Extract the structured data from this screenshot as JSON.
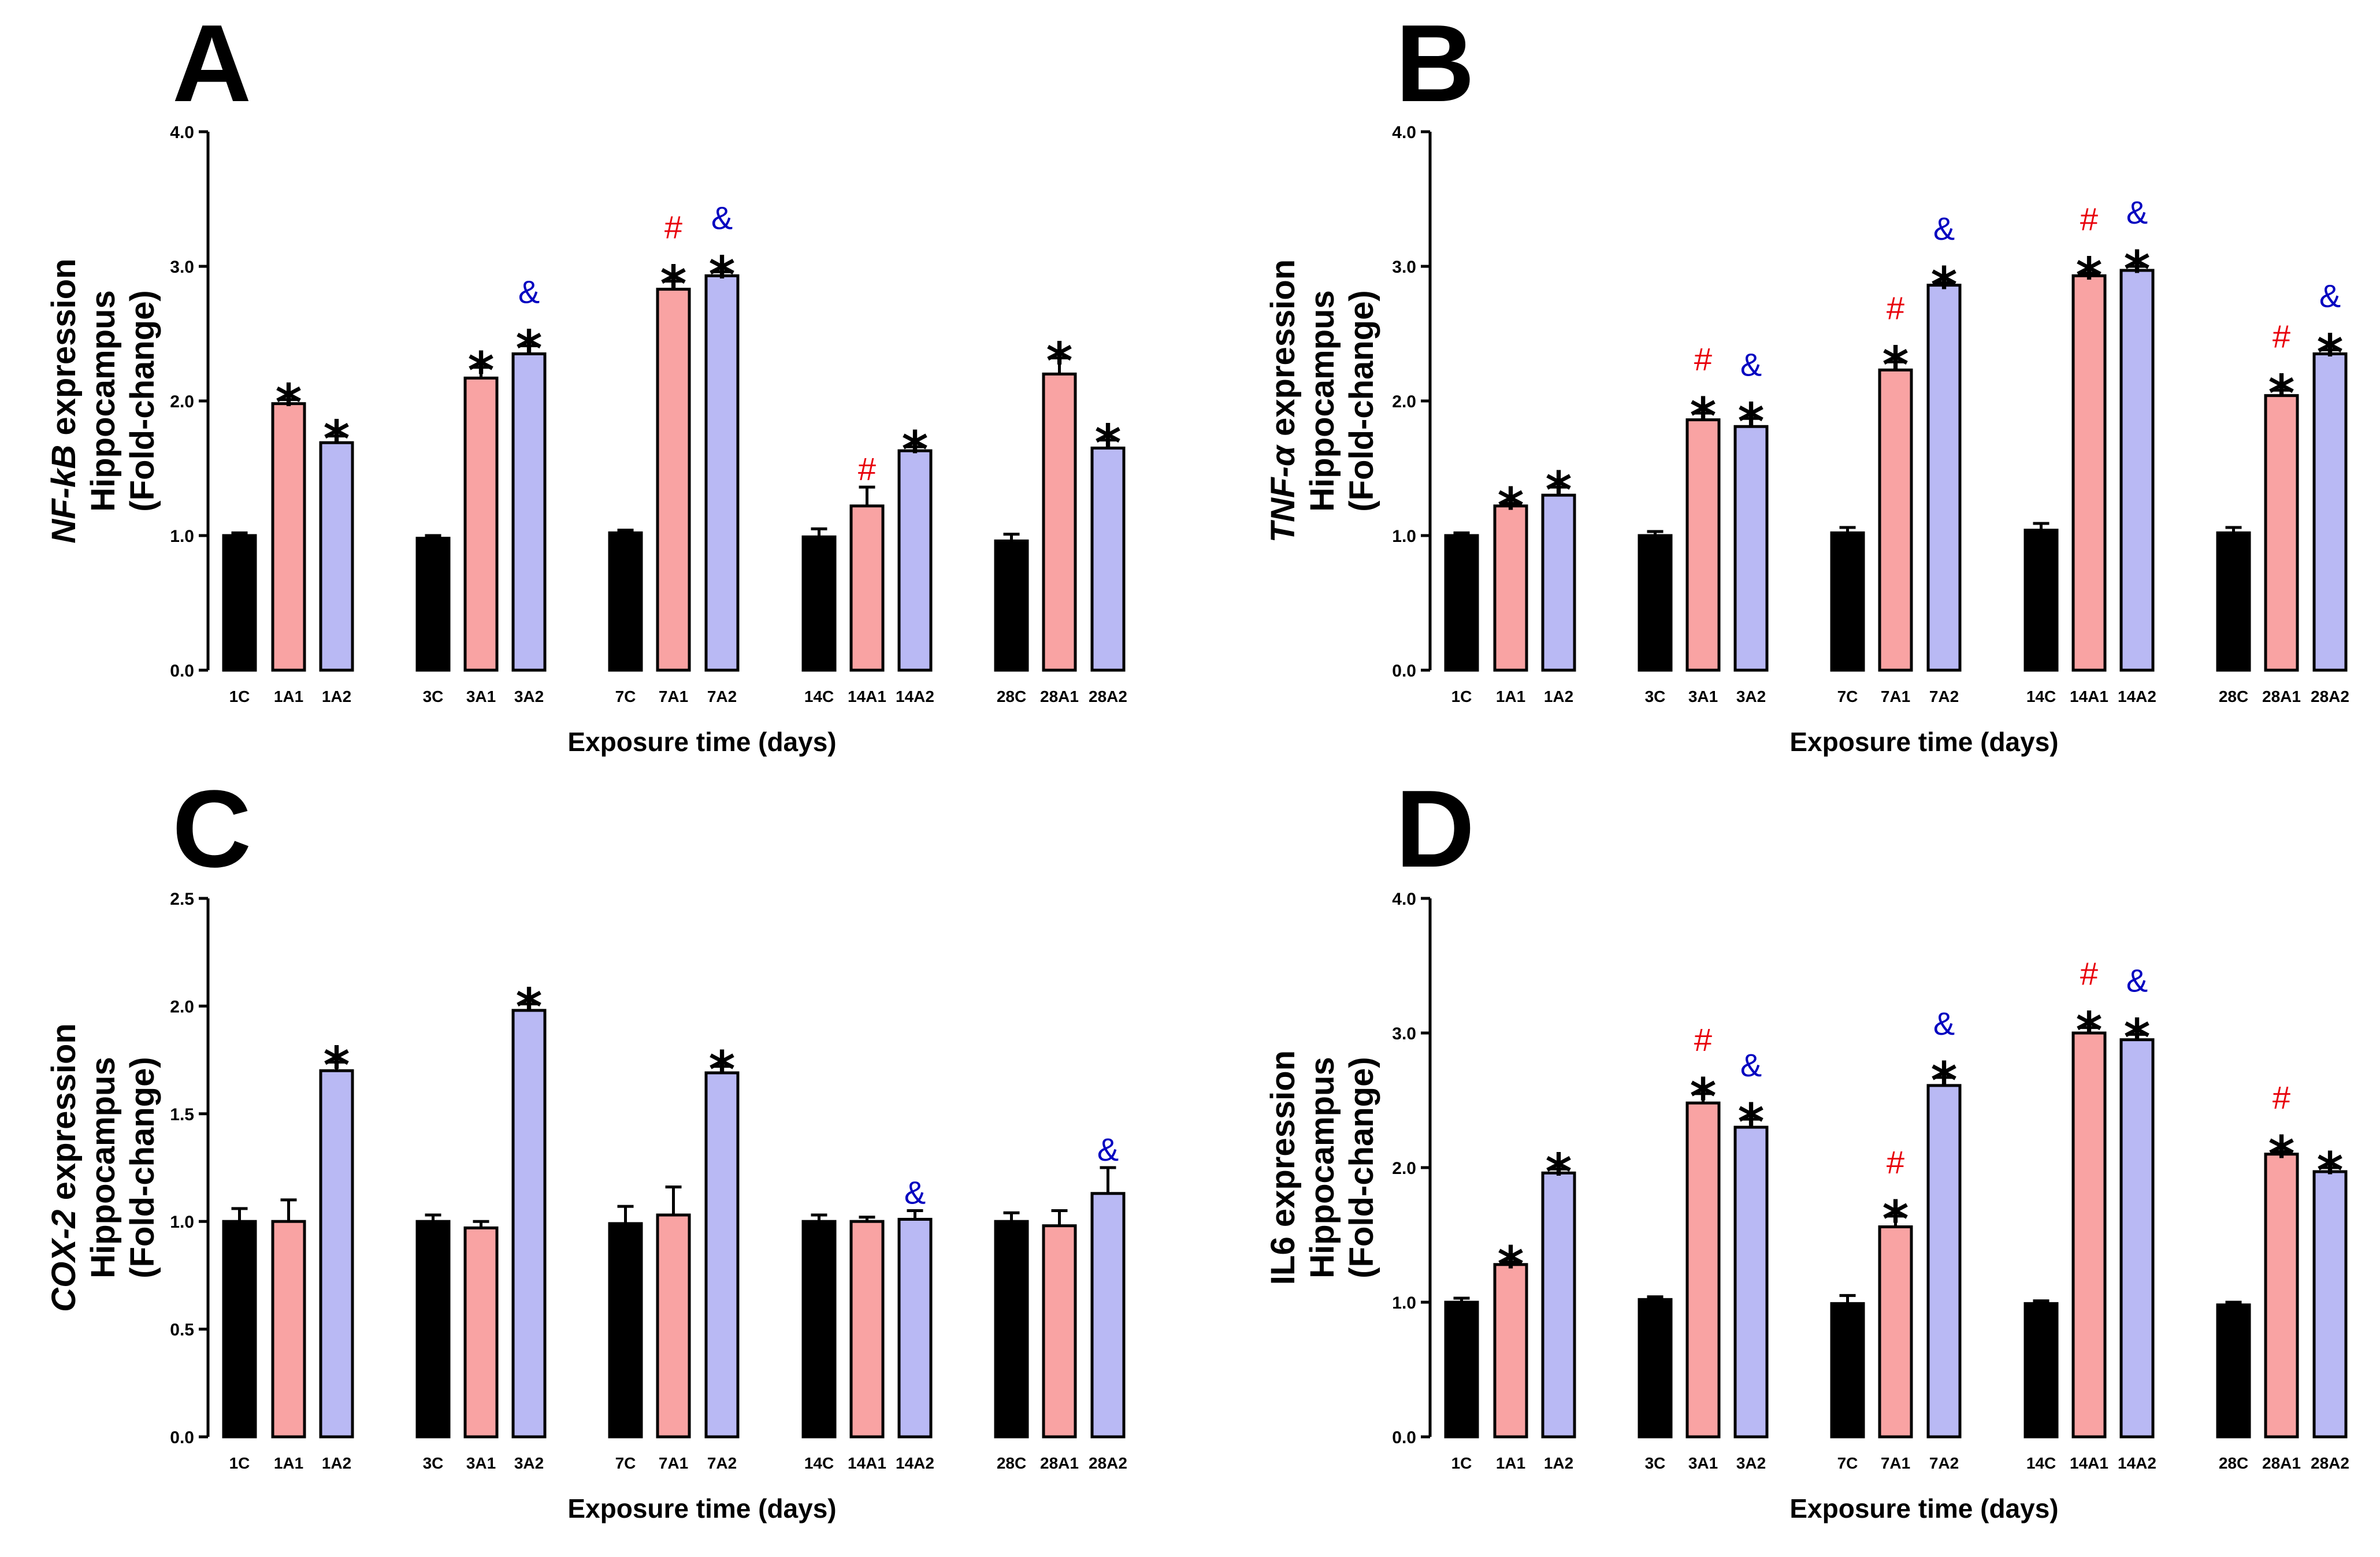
{
  "colors": {
    "control": "#000000",
    "a1": "#f9a3a3",
    "a2": "#b9b9f4",
    "hash": "#e8000b",
    "amp": "#0000c0",
    "axis": "#000000"
  },
  "chart_data": [
    {
      "type": "bar",
      "panel": "A",
      "ylabel_gene": "NF-kB",
      "ylabel_rest": " expression",
      "ylabel_line2": "Hippocampus",
      "ylabel_line3": "(Fold-change)",
      "xlabel": "Exposure time (days)",
      "ylim": [
        0,
        4
      ],
      "yticks": [
        "0.0",
        "1.0",
        "2.0",
        "3.0",
        "4.0"
      ],
      "categories": [
        "1C",
        "1A1",
        "1A2",
        "3C",
        "3A1",
        "3A2",
        "7C",
        "7A1",
        "7A2",
        "14C",
        "14A1",
        "14A2",
        "28C",
        "28A1",
        "28A2"
      ],
      "values": [
        1.0,
        1.98,
        1.69,
        0.98,
        2.17,
        2.35,
        1.02,
        2.83,
        2.93,
        0.99,
        1.22,
        1.63,
        0.96,
        2.2,
        1.65
      ],
      "errors": [
        0.02,
        0.03,
        0.05,
        0.02,
        0.08,
        0.06,
        0.02,
        0.06,
        0.03,
        0.06,
        0.14,
        0.03,
        0.05,
        0.12,
        0.06
      ],
      "annotations": [
        {
          "i": 1,
          "marks": [
            "*"
          ]
        },
        {
          "i": 2,
          "marks": [
            "*"
          ]
        },
        {
          "i": 4,
          "marks": [
            "*"
          ]
        },
        {
          "i": 5,
          "marks": [
            "*",
            "&"
          ]
        },
        {
          "i": 7,
          "marks": [
            "*",
            "#"
          ]
        },
        {
          "i": 8,
          "marks": [
            "*",
            "&"
          ]
        },
        {
          "i": 10,
          "marks": [
            "#"
          ]
        },
        {
          "i": 11,
          "marks": [
            "*"
          ]
        },
        {
          "i": 13,
          "marks": [
            "*"
          ]
        },
        {
          "i": 14,
          "marks": [
            "*"
          ]
        }
      ]
    },
    {
      "type": "bar",
      "panel": "B",
      "ylabel_gene": "TNF-α",
      "ylabel_rest": " expression",
      "ylabel_line2": "Hippocampus",
      "ylabel_line3": "(Fold-change)",
      "xlabel": "Exposure time (days)",
      "ylim": [
        0,
        4
      ],
      "yticks": [
        "0.0",
        "1.0",
        "2.0",
        "3.0",
        "4.0"
      ],
      "categories": [
        "1C",
        "1A1",
        "1A2",
        "3C",
        "3A1",
        "3A2",
        "7C",
        "7A1",
        "7A2",
        "14C",
        "14A1",
        "14A2",
        "28C",
        "28A1",
        "28A2"
      ],
      "values": [
        1.0,
        1.22,
        1.3,
        1.0,
        1.86,
        1.81,
        1.02,
        2.23,
        2.86,
        1.04,
        2.93,
        2.97,
        1.02,
        2.04,
        2.35
      ],
      "errors": [
        0.02,
        0.02,
        0.06,
        0.03,
        0.05,
        0.06,
        0.04,
        0.06,
        0.02,
        0.05,
        0.02,
        0.03,
        0.04,
        0.04,
        0.03
      ],
      "annotations": [
        {
          "i": 1,
          "marks": [
            "*"
          ]
        },
        {
          "i": 2,
          "marks": [
            "*"
          ]
        },
        {
          "i": 4,
          "marks": [
            "*",
            "#"
          ]
        },
        {
          "i": 5,
          "marks": [
            "*",
            "&"
          ]
        },
        {
          "i": 7,
          "marks": [
            "*",
            "#"
          ]
        },
        {
          "i": 8,
          "marks": [
            "*",
            "&"
          ]
        },
        {
          "i": 10,
          "marks": [
            "*",
            "#"
          ]
        },
        {
          "i": 11,
          "marks": [
            "*",
            "&"
          ]
        },
        {
          "i": 13,
          "marks": [
            "*",
            "#"
          ]
        },
        {
          "i": 14,
          "marks": [
            "*",
            "&"
          ]
        }
      ]
    },
    {
      "type": "bar",
      "panel": "C",
      "ylabel_gene": "COX-2",
      "ylabel_rest": " expression",
      "ylabel_line2": "Hippocampus",
      "ylabel_line3": "(Fold-change)",
      "xlabel": "Exposure time (days)",
      "ylim": [
        0,
        2.5
      ],
      "yticks": [
        "0.0",
        "0.5",
        "1.0",
        "1.5",
        "2.0",
        "2.5"
      ],
      "categories": [
        "1C",
        "1A1",
        "1A2",
        "3C",
        "3A1",
        "3A2",
        "7C",
        "7A1",
        "7A2",
        "14C",
        "14A1",
        "14A2",
        "28C",
        "28A1",
        "28A2"
      ],
      "values": [
        1.0,
        1.0,
        1.7,
        1.0,
        0.97,
        1.98,
        0.99,
        1.03,
        1.69,
        1.0,
        1.0,
        1.01,
        1.0,
        0.98,
        1.13
      ],
      "errors": [
        0.06,
        0.1,
        0.04,
        0.03,
        0.03,
        0.03,
        0.08,
        0.13,
        0.03,
        0.03,
        0.02,
        0.04,
        0.04,
        0.07,
        0.12
      ],
      "annotations": [
        {
          "i": 2,
          "marks": [
            "*"
          ]
        },
        {
          "i": 5,
          "marks": [
            "*"
          ]
        },
        {
          "i": 8,
          "marks": [
            "*"
          ]
        },
        {
          "i": 11,
          "marks": [
            "&"
          ]
        },
        {
          "i": 14,
          "marks": [
            "&"
          ]
        }
      ]
    },
    {
      "type": "bar",
      "panel": "D",
      "ylabel_gene": "",
      "ylabel_rest": "IL6 expression",
      "ylabel_line2": "Hippocampus",
      "ylabel_line3": "(Fold-change)",
      "xlabel": "Exposure time (days)",
      "ylim": [
        0,
        4
      ],
      "yticks": [
        "0.0",
        "1.0",
        "2.0",
        "3.0",
        "4.0"
      ],
      "categories": [
        "1C",
        "1A1",
        "1A2",
        "3C",
        "3A1",
        "3A2",
        "7C",
        "7A1",
        "7A2",
        "14C",
        "14A1",
        "14A2",
        "28C",
        "28A1",
        "28A2"
      ],
      "values": [
        1.0,
        1.28,
        1.96,
        1.02,
        2.48,
        2.3,
        0.99,
        1.56,
        2.61,
        0.99,
        3.0,
        2.95,
        0.98,
        2.1,
        1.97
      ],
      "errors": [
        0.03,
        0.02,
        0.03,
        0.02,
        0.07,
        0.06,
        0.06,
        0.08,
        0.06,
        0.02,
        0.04,
        0.04,
        0.02,
        0.02,
        0.03
      ],
      "annotations": [
        {
          "i": 1,
          "marks": [
            "*"
          ]
        },
        {
          "i": 2,
          "marks": [
            "*"
          ]
        },
        {
          "i": 4,
          "marks": [
            "*",
            "#"
          ]
        },
        {
          "i": 5,
          "marks": [
            "*",
            "&"
          ]
        },
        {
          "i": 7,
          "marks": [
            "*",
            "#"
          ]
        },
        {
          "i": 8,
          "marks": [
            "*",
            "&"
          ]
        },
        {
          "i": 10,
          "marks": [
            "*",
            "#"
          ]
        },
        {
          "i": 11,
          "marks": [
            "*",
            "&"
          ]
        },
        {
          "i": 13,
          "marks": [
            "*",
            "#"
          ]
        },
        {
          "i": 14,
          "marks": [
            "*"
          ]
        }
      ]
    }
  ]
}
